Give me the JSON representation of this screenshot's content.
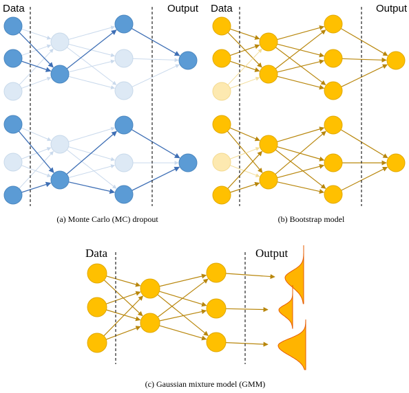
{
  "colors": {
    "mc_node": "#5b9bd5",
    "mc_node_stroke": "#4a86bf",
    "mc_faded": "#dde9f5",
    "mc_edge": "#3e6fb5",
    "mc_edge_faded": "#c9d9ec",
    "bs_node": "#ffc000",
    "bs_node_stroke": "#e0a800",
    "bs_faded": "#fde9b0",
    "bs_edge": "#b8860b",
    "gmm_fill": "#ffb400",
    "gmm_edge_line": "#e65c00"
  },
  "panels": {
    "mc": {
      "data_label": "Data",
      "output_label": "Output",
      "caption": "(a) Monte Carlo (MC) dropout"
    },
    "bootstrap": {
      "data_label": "Data",
      "output_label": "Output",
      "caption": "(b) Bootstrap model"
    },
    "gmm": {
      "data_label": "Data",
      "output_label": "Output",
      "caption": "(c) Gaussian mixture model (GMM)"
    }
  }
}
